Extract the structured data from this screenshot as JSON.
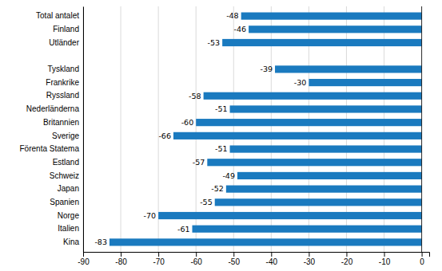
{
  "chart_data": {
    "type": "bar",
    "orientation": "horizontal",
    "categories": [
      "Kina",
      "Italien",
      "Norge",
      "Spanien",
      "Japan",
      "Schweiz",
      "Estland",
      "Förenta Statema",
      "Sverige",
      "Britannien",
      "Nederländerna",
      "Ryssland",
      "Frankrike",
      "Tyskland",
      null,
      "Utländer",
      "Finland",
      "Total antalet"
    ],
    "values": [
      -83,
      -61,
      -70,
      -55,
      -52,
      -49,
      -57,
      -51,
      -66,
      -60,
      -51,
      -58,
      -30,
      -39,
      null,
      -53,
      -46,
      -48
    ],
    "color": "#1a7abf",
    "xlim": [
      -90,
      2
    ],
    "xticks": [
      -90,
      -80,
      -70,
      -60,
      -50,
      -40,
      -30,
      -20,
      -10,
      0
    ],
    "grid": true,
    "data_labels": true
  }
}
